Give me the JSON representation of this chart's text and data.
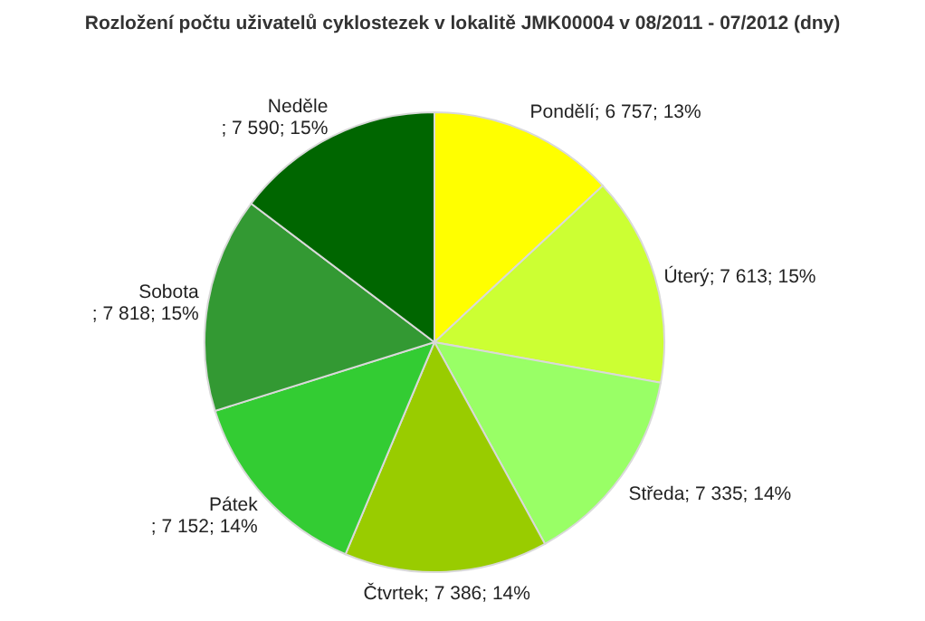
{
  "chart_data": {
    "type": "pie",
    "title": "Rozložení počtu uživatelů cyklostezek v lokalitě JMK00004 v 08/2011 - 07/2012 (dny)",
    "categories": [
      "Pondělí",
      "Úterý",
      "Středa",
      "Čtvrtek",
      "Pátek",
      "Sobota",
      "Neděle"
    ],
    "values": [
      6757,
      7613,
      7335,
      7386,
      7152,
      7818,
      7590
    ],
    "value_labels": [
      "; 6 757; 13%",
      "; 7 613; 15%",
      "; 7 335; 14%",
      "; 7 386; 14%",
      "; 7 152; 14%",
      "; 7 818; 15%",
      "; 7 590; 15%"
    ],
    "colors": [
      "#ffff00",
      "#ccff33",
      "#99ff66",
      "#99cc00",
      "#33cc33",
      "#339933",
      "#006600"
    ]
  }
}
